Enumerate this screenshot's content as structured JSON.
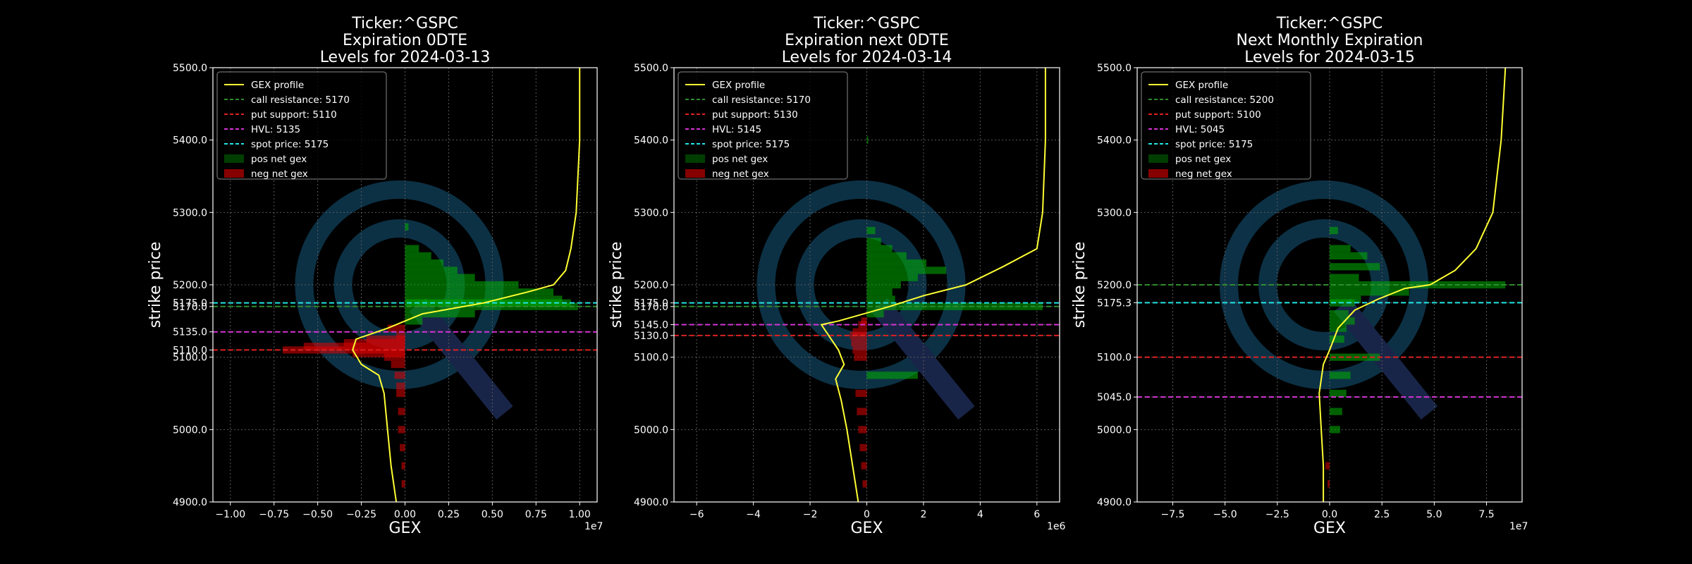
{
  "figure": {
    "background": "#000000",
    "watermark_color": "#0f3a52",
    "colors": {
      "gex_profile": "#ffff33",
      "call_resistance": "#2e8b2e",
      "put_support": "#e02020",
      "hvl": "#d633d6",
      "spot_price": "#22e6e6",
      "pos_bar": "#00b000",
      "neg_bar": "#e00000",
      "grid": "#5a5a5a",
      "axes": "#ffffff"
    }
  },
  "chart_data": [
    {
      "type": "bar",
      "orientation": "horizontal",
      "title": [
        "Ticker:^GSPC",
        "Expiration 0DTE",
        "Levels for 2024-03-13"
      ],
      "xlabel": "GEX",
      "ylabel": "strike price",
      "x_multiplier": "1e7",
      "xlim": [
        -1.1,
        1.1
      ],
      "ylim": [
        4900,
        5500
      ],
      "xticks": [
        -1.0,
        -0.75,
        -0.5,
        -0.25,
        0.0,
        0.25,
        0.5,
        0.75,
        1.0
      ],
      "xtick_labels": [
        "−1.00",
        "−0.75",
        "−0.50",
        "−0.25",
        "0.00",
        "0.25",
        "0.50",
        "0.75",
        "1.00"
      ],
      "yticks": [
        4900,
        5000,
        5100,
        5110,
        5135,
        5170,
        5175,
        5200,
        5300,
        5400,
        5500
      ],
      "ytick_labels": [
        "4900.0",
        "5000.0",
        "5100.0",
        "5110.0",
        "5135.0",
        "5170.0",
        "5175.0",
        "5200.0",
        "5300.0",
        "5400.0",
        "5500.0"
      ],
      "grid": true,
      "legend": {
        "placement": "top-left",
        "entries": [
          {
            "label": "GEX profile",
            "kind": "line",
            "key": "gex_profile"
          },
          {
            "label": "call resistance: 5170",
            "kind": "dash",
            "key": "call_resistance"
          },
          {
            "label": "put support: 5110",
            "kind": "dash",
            "key": "put_support"
          },
          {
            "label": "HVL: 5135",
            "kind": "dash",
            "key": "hvl"
          },
          {
            "label": "spot price: 5175",
            "kind": "dash",
            "key": "spot_price"
          },
          {
            "label": "pos net gex",
            "kind": "patch",
            "key": "pos_bar"
          },
          {
            "label": "neg net gex",
            "kind": "patch",
            "key": "neg_bar"
          }
        ]
      },
      "levels": {
        "call_resistance": 5170,
        "put_support": 5110,
        "hvl": 5135,
        "spot_price": 5175
      },
      "bars": [
        {
          "strike": 5280,
          "value": 0.02
        },
        {
          "strike": 5250,
          "value": 0.08
        },
        {
          "strike": 5240,
          "value": 0.15
        },
        {
          "strike": 5230,
          "value": 0.22
        },
        {
          "strike": 5220,
          "value": 0.3
        },
        {
          "strike": 5210,
          "value": 0.4
        },
        {
          "strike": 5200,
          "value": 0.65
        },
        {
          "strike": 5190,
          "value": 0.85
        },
        {
          "strike": 5180,
          "value": 0.9
        },
        {
          "strike": 5175,
          "value": 0.95
        },
        {
          "strike": 5170,
          "value": 0.99
        },
        {
          "strike": 5160,
          "value": 0.4
        },
        {
          "strike": 5150,
          "value": 0.1
        },
        {
          "strike": 5140,
          "value": -0.1
        },
        {
          "strike": 5130,
          "value": -0.05
        },
        {
          "strike": 5125,
          "value": -0.22
        },
        {
          "strike": 5120,
          "value": -0.35
        },
        {
          "strike": 5115,
          "value": -0.58
        },
        {
          "strike": 5110,
          "value": -0.7
        },
        {
          "strike": 5105,
          "value": -0.3
        },
        {
          "strike": 5100,
          "value": -0.12
        },
        {
          "strike": 5090,
          "value": -0.08
        },
        {
          "strike": 5075,
          "value": -0.06
        },
        {
          "strike": 5060,
          "value": -0.05
        },
        {
          "strike": 5050,
          "value": -0.05
        },
        {
          "strike": 5025,
          "value": -0.04
        },
        {
          "strike": 5000,
          "value": -0.04
        },
        {
          "strike": 4975,
          "value": -0.03
        },
        {
          "strike": 4950,
          "value": -0.02
        },
        {
          "strike": 4925,
          "value": -0.02
        }
      ],
      "profile": [
        [
          -0.05,
          4900
        ],
        [
          -0.08,
          4950
        ],
        [
          -0.1,
          5000
        ],
        [
          -0.12,
          5050
        ],
        [
          -0.15,
          5075
        ],
        [
          -0.25,
          5090
        ],
        [
          -0.3,
          5110
        ],
        [
          -0.28,
          5125
        ],
        [
          -0.1,
          5140
        ],
        [
          0.1,
          5160
        ],
        [
          0.45,
          5175
        ],
        [
          0.7,
          5190
        ],
        [
          0.85,
          5200
        ],
        [
          0.92,
          5220
        ],
        [
          0.95,
          5250
        ],
        [
          0.98,
          5300
        ],
        [
          1.0,
          5400
        ],
        [
          1.0,
          5500
        ]
      ]
    },
    {
      "type": "bar",
      "orientation": "horizontal",
      "title": [
        "Ticker:^GSPC",
        "Expiration next 0DTE",
        "Levels for 2024-03-14"
      ],
      "xlabel": "GEX",
      "ylabel": "strike price",
      "x_multiplier": "1e6",
      "xlim": [
        -6.8,
        6.8
      ],
      "ylim": [
        4900,
        5500
      ],
      "xticks": [
        -6,
        -4,
        -2,
        0,
        2,
        4,
        6
      ],
      "xtick_labels": [
        "−6",
        "−4",
        "−2",
        "0",
        "2",
        "4",
        "6"
      ],
      "yticks": [
        4900,
        5000,
        5100,
        5130,
        5145,
        5170,
        5175,
        5200,
        5300,
        5400,
        5500
      ],
      "ytick_labels": [
        "4900.0",
        "5000.0",
        "5100.0",
        "5130.0",
        "5145.0",
        "5170.0",
        "5175.0",
        "5200.0",
        "5300.0",
        "5400.0",
        "5500.0"
      ],
      "grid": true,
      "legend": {
        "placement": "top-left",
        "entries": [
          {
            "label": "GEX profile",
            "kind": "line",
            "key": "gex_profile"
          },
          {
            "label": "call resistance: 5170",
            "kind": "dash",
            "key": "call_resistance"
          },
          {
            "label": "put support: 5130",
            "kind": "dash",
            "key": "put_support"
          },
          {
            "label": "HVL: 5145",
            "kind": "dash",
            "key": "hvl"
          },
          {
            "label": "spot price: 5175",
            "kind": "dash",
            "key": "spot_price"
          },
          {
            "label": "pos net gex",
            "kind": "patch",
            "key": "pos_bar"
          },
          {
            "label": "neg net gex",
            "kind": "patch",
            "key": "neg_bar"
          }
        ]
      },
      "levels": {
        "call_resistance": 5170,
        "put_support": 5130,
        "hvl": 5145,
        "spot_price": 5175
      },
      "bars": [
        {
          "strike": 5400,
          "value": 0.05
        },
        {
          "strike": 5275,
          "value": 0.3
        },
        {
          "strike": 5260,
          "value": 0.5
        },
        {
          "strike": 5250,
          "value": 0.9
        },
        {
          "strike": 5240,
          "value": 1.4
        },
        {
          "strike": 5230,
          "value": 2.1
        },
        {
          "strike": 5220,
          "value": 2.8
        },
        {
          "strike": 5210,
          "value": 1.8
        },
        {
          "strike": 5200,
          "value": 1.2
        },
        {
          "strike": 5190,
          "value": 0.9
        },
        {
          "strike": 5180,
          "value": 1.0
        },
        {
          "strike": 5170,
          "value": 6.2
        },
        {
          "strike": 5160,
          "value": 0.6
        },
        {
          "strike": 5150,
          "value": -0.2
        },
        {
          "strike": 5145,
          "value": -0.3
        },
        {
          "strike": 5135,
          "value": -0.5
        },
        {
          "strike": 5130,
          "value": -0.6
        },
        {
          "strike": 5120,
          "value": -0.55
        },
        {
          "strike": 5110,
          "value": -0.5
        },
        {
          "strike": 5100,
          "value": -0.45
        },
        {
          "strike": 5075,
          "value": 1.8
        },
        {
          "strike": 5050,
          "value": -0.4
        },
        {
          "strike": 5025,
          "value": -0.35
        },
        {
          "strike": 5000,
          "value": -0.3
        },
        {
          "strike": 4975,
          "value": -0.25
        },
        {
          "strike": 4950,
          "value": -0.2
        },
        {
          "strike": 4925,
          "value": -0.15
        }
      ],
      "profile": [
        [
          -0.3,
          4900
        ],
        [
          -0.5,
          4950
        ],
        [
          -0.7,
          5000
        ],
        [
          -0.9,
          5040
        ],
        [
          -1.1,
          5070
        ],
        [
          -0.8,
          5090
        ],
        [
          -1.0,
          5110
        ],
        [
          -1.6,
          5145
        ],
        [
          -1.0,
          5150
        ],
        [
          0.8,
          5170
        ],
        [
          2.0,
          5185
        ],
        [
          3.5,
          5200
        ],
        [
          4.8,
          5225
        ],
        [
          6.0,
          5250
        ],
        [
          6.2,
          5300
        ],
        [
          6.3,
          5400
        ],
        [
          6.3,
          5500
        ]
      ]
    },
    {
      "type": "bar",
      "orientation": "horizontal",
      "title": [
        "Ticker:^GSPC",
        "Next Monthly Expiration",
        "Levels for 2024-03-15"
      ],
      "xlabel": "GEX",
      "ylabel": "strike price",
      "x_multiplier": "1e7",
      "xlim": [
        -9.2,
        9.2
      ],
      "ylim": [
        4900,
        5500
      ],
      "xticks": [
        -7.5,
        -5.0,
        -2.5,
        0.0,
        2.5,
        5.0,
        7.5
      ],
      "xtick_labels": [
        "−7.5",
        "−5.0",
        "−2.5",
        "0.0",
        "2.5",
        "5.0",
        "7.5"
      ],
      "yticks": [
        4900,
        5000,
        5045,
        5100,
        5175.3,
        5200,
        5300,
        5400,
        5500
      ],
      "ytick_labels": [
        "4900.0",
        "5000.0",
        "5045.0",
        "5100.0",
        "5175.3",
        "5200.0",
        "5300.0",
        "5400.0",
        "5500.0"
      ],
      "grid": true,
      "legend": {
        "placement": "top-left",
        "entries": [
          {
            "label": "GEX profile",
            "kind": "line",
            "key": "gex_profile"
          },
          {
            "label": "call resistance: 5200",
            "kind": "dash",
            "key": "call_resistance"
          },
          {
            "label": "put support: 5100",
            "kind": "dash",
            "key": "put_support"
          },
          {
            "label": "HVL: 5045",
            "kind": "dash",
            "key": "hvl"
          },
          {
            "label": "spot price: 5175",
            "kind": "dash",
            "key": "spot_price"
          },
          {
            "label": "pos net gex",
            "kind": "patch",
            "key": "pos_bar"
          },
          {
            "label": "neg net gex",
            "kind": "patch",
            "key": "neg_bar"
          }
        ]
      },
      "levels": {
        "call_resistance": 5200,
        "put_support": 5100,
        "hvl": 5045,
        "spot_price": 5175.3
      },
      "bars": [
        {
          "strike": 5275,
          "value": 0.4
        },
        {
          "strike": 5250,
          "value": 1.0
        },
        {
          "strike": 5240,
          "value": 1.8
        },
        {
          "strike": 5225,
          "value": 2.4
        },
        {
          "strike": 5210,
          "value": 1.4
        },
        {
          "strike": 5200,
          "value": 8.4
        },
        {
          "strike": 5190,
          "value": 3.8
        },
        {
          "strike": 5180,
          "value": 1.5
        },
        {
          "strike": 5175,
          "value": 1.2
        },
        {
          "strike": 5160,
          "value": 0.9
        },
        {
          "strike": 5150,
          "value": 1.2
        },
        {
          "strike": 5140,
          "value": 0.8
        },
        {
          "strike": 5125,
          "value": 0.7
        },
        {
          "strike": 5100,
          "value": 2.4
        },
        {
          "strike": 5075,
          "value": 1.0
        },
        {
          "strike": 5050,
          "value": 0.8
        },
        {
          "strike": 5025,
          "value": 0.6
        },
        {
          "strike": 5000,
          "value": 0.5
        },
        {
          "strike": 4950,
          "value": -0.2
        },
        {
          "strike": 4925,
          "value": -0.1
        }
      ],
      "profile": [
        [
          -0.3,
          4900
        ],
        [
          -0.3,
          4950
        ],
        [
          -0.4,
          5000
        ],
        [
          -0.5,
          5050
        ],
        [
          -0.3,
          5090
        ],
        [
          0.0,
          5110
        ],
        [
          0.4,
          5140
        ],
        [
          1.2,
          5165
        ],
        [
          2.3,
          5180
        ],
        [
          3.6,
          5195
        ],
        [
          4.8,
          5200
        ],
        [
          6.0,
          5220
        ],
        [
          7.0,
          5250
        ],
        [
          7.8,
          5300
        ],
        [
          8.2,
          5400
        ],
        [
          8.4,
          5500
        ]
      ]
    }
  ]
}
